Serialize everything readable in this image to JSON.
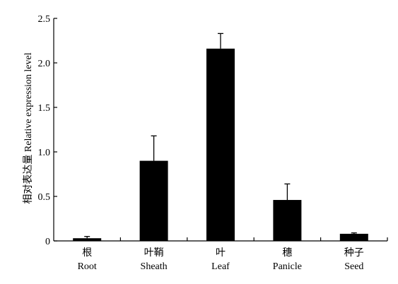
{
  "chart_data": {
    "type": "bar",
    "categories": [
      {
        "cn": "根",
        "en": "Root"
      },
      {
        "cn": "叶鞘",
        "en": "Sheath"
      },
      {
        "cn": "叶",
        "en": "Leaf"
      },
      {
        "cn": "穗",
        "en": "Panicle"
      },
      {
        "cn": "种子",
        "en": "Seed"
      }
    ],
    "values": [
      0.03,
      0.9,
      2.16,
      0.46,
      0.08
    ],
    "errors": [
      0.02,
      0.28,
      0.17,
      0.18,
      0.01
    ],
    "ylabel": "相对表达量 Relative expression level",
    "xlabel": "",
    "ylim": [
      0,
      2.5
    ],
    "yticks": [
      0,
      0.5,
      1.0,
      1.5,
      2.0,
      2.5
    ],
    "ytick_labels": [
      "0",
      "0.5",
      "1.0",
      "1.5",
      "2.0",
      "2.5"
    ],
    "bar_color": "#000000",
    "grid": false
  }
}
